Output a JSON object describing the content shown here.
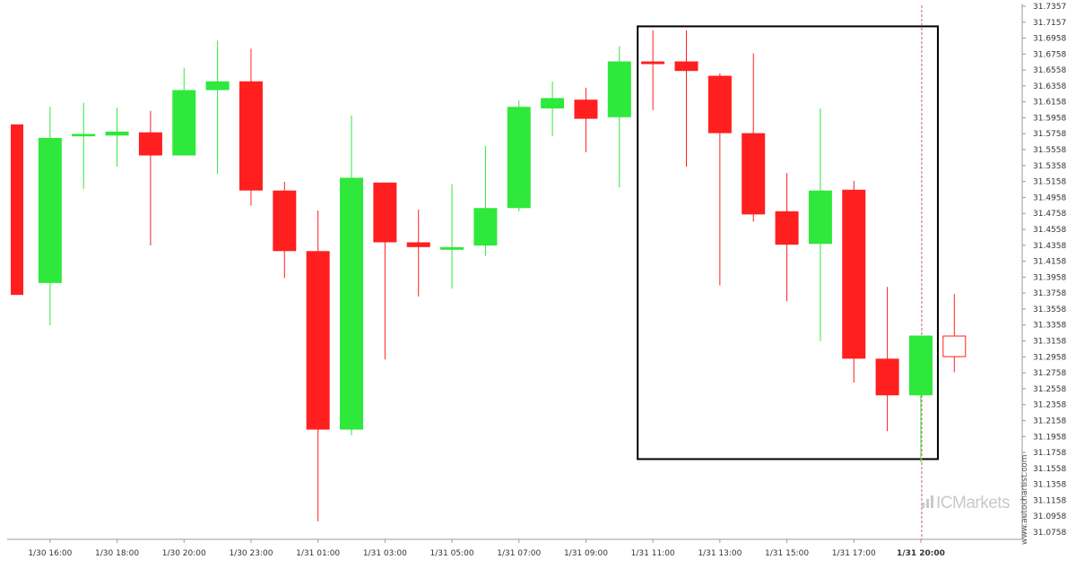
{
  "chart_data": {
    "type": "candlestick",
    "up_color": "#2ee83c",
    "down_color": "#ff1f1f",
    "y_ticks": [
      "31.7357",
      "31.7157",
      "31.6958",
      "31.6758",
      "31.6558",
      "31.6358",
      "31.6158",
      "31.5958",
      "31.5758",
      "31.5558",
      "31.5358",
      "31.5158",
      "31.4958",
      "31.4758",
      "31.4558",
      "31.4358",
      "31.4158",
      "31.3958",
      "31.3758",
      "31.3558",
      "31.3358",
      "31.3158",
      "31.2958",
      "31.2758",
      "31.2558",
      "31.2358",
      "31.2158",
      "31.1958",
      "31.1758",
      "31.1558",
      "31.1358",
      "31.1158",
      "31.0958",
      "31.0758"
    ],
    "ylim": [
      31.0758,
      31.7357
    ],
    "x_labels": [
      {
        "label": "1/30 16:00",
        "index": 1
      },
      {
        "label": "1/30 18:00",
        "index": 3
      },
      {
        "label": "1/30 20:00",
        "index": 5
      },
      {
        "label": "1/30 23:00",
        "index": 7
      },
      {
        "label": "1/31 01:00",
        "index": 9
      },
      {
        "label": "1/31 03:00",
        "index": 11
      },
      {
        "label": "1/31 05:00",
        "index": 13
      },
      {
        "label": "1/31 07:00",
        "index": 15
      },
      {
        "label": "1/31 09:00",
        "index": 17
      },
      {
        "label": "1/31 11:00",
        "index": 19
      },
      {
        "label": "1/31 13:00",
        "index": 21
      },
      {
        "label": "1/31 15:00",
        "index": 23
      },
      {
        "label": "1/31 17:00",
        "index": 25
      },
      {
        "label": "1/31 20:00",
        "index": 27,
        "bold": true
      }
    ],
    "candles": [
      {
        "o": 31.5875,
        "h": 31.5875,
        "l": 31.3735,
        "c": 31.3735
      },
      {
        "o": 31.3885,
        "h": 31.6095,
        "l": 31.3355,
        "c": 31.5705
      },
      {
        "o": 31.5725,
        "h": 31.6145,
        "l": 31.5065,
        "c": 31.5755
      },
      {
        "o": 31.5735,
        "h": 31.6085,
        "l": 31.5345,
        "c": 31.5785
      },
      {
        "o": 31.5775,
        "h": 31.6045,
        "l": 31.4355,
        "c": 31.5485
      },
      {
        "o": 31.5485,
        "h": 31.6585,
        "l": 31.5495,
        "c": 31.6305
      },
      {
        "o": 31.6305,
        "h": 31.6925,
        "l": 31.5255,
        "c": 31.6415
      },
      {
        "o": 31.6415,
        "h": 31.6825,
        "l": 31.4855,
        "c": 31.5045
      },
      {
        "o": 31.5045,
        "h": 31.5155,
        "l": 31.3945,
        "c": 31.4285
      },
      {
        "o": 31.4285,
        "h": 31.4795,
        "l": 31.0895,
        "c": 31.2045
      },
      {
        "o": 31.2045,
        "h": 31.5985,
        "l": 31.1975,
        "c": 31.5205
      },
      {
        "o": 31.5145,
        "h": 31.5145,
        "l": 31.2925,
        "c": 31.4395
      },
      {
        "o": 31.4395,
        "h": 31.4805,
        "l": 31.3715,
        "c": 31.4335
      },
      {
        "o": 31.4335,
        "h": 31.5125,
        "l": 31.3815,
        "c": 31.4335
      },
      {
        "o": 31.4355,
        "h": 31.5605,
        "l": 31.4225,
        "c": 31.4825
      },
      {
        "o": 31.4825,
        "h": 31.6175,
        "l": 31.4785,
        "c": 31.6095
      },
      {
        "o": 31.6075,
        "h": 31.6415,
        "l": 31.5725,
        "c": 31.6205
      },
      {
        "o": 31.6185,
        "h": 31.6335,
        "l": 31.5525,
        "c": 31.5945
      },
      {
        "o": 31.5965,
        "h": 31.6855,
        "l": 31.5085,
        "c": 31.6665
      },
      {
        "o": 31.6665,
        "h": 31.7055,
        "l": 31.6055,
        "c": 31.6655
      },
      {
        "o": 31.6665,
        "h": 31.7055,
        "l": 31.5345,
        "c": 31.6545
      },
      {
        "o": 31.6485,
        "h": 31.6515,
        "l": 31.3855,
        "c": 31.5765
      },
      {
        "o": 31.5765,
        "h": 31.6765,
        "l": 31.4655,
        "c": 31.4745
      },
      {
        "o": 31.4785,
        "h": 31.5265,
        "l": 31.3655,
        "c": 31.4365
      },
      {
        "o": 31.4375,
        "h": 31.6075,
        "l": 31.3155,
        "c": 31.5045
      },
      {
        "o": 31.5055,
        "h": 31.5165,
        "l": 31.2635,
        "c": 31.2935
      },
      {
        "o": 31.2935,
        "h": 31.3835,
        "l": 31.2025,
        "c": 31.2475
      },
      {
        "o": 31.2475,
        "h": 31.3225,
        "l": 31.1635,
        "c": 31.3225
      },
      {
        "o": 31.3225,
        "h": 31.3745,
        "l": 31.2765,
        "c": 31.2955,
        "hollow": true
      }
    ],
    "highlight_box": {
      "from_index": 19,
      "to_index": 27,
      "top": 31.7105,
      "bottom": 31.1675
    },
    "current_marker_index": 27
  },
  "watermark": {
    "brand": "ICMarkets",
    "side_text": "www.autochartist.com"
  }
}
